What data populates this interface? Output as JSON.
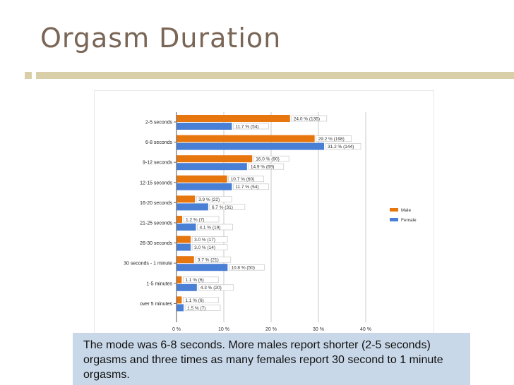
{
  "slide": {
    "title": "Orgasm Duration",
    "caption": "The mode was 6-8 seconds.  More males report shorter (2-5 seconds) orgasms and three times as many females report 30 second to 1 minute orgasms."
  },
  "colors": {
    "title": "#7a6656",
    "accent_bar": "#d8cfa8",
    "male": "#e8760e",
    "female": "#4a7fd6",
    "caption_bg": "#c9d8e8",
    "grid": "#c8c8c8"
  },
  "chart_data": {
    "type": "bar",
    "orientation": "horizontal",
    "categories": [
      "2-5 seconds",
      "6-8 seconds",
      "9-12 seconds",
      "12-15 seconds",
      "16-20 seconds",
      "21-25 seconds",
      "26-30 seconds",
      "30 seconds - 1 minute",
      "1-5 minutes",
      "over 5 minutes"
    ],
    "series": [
      {
        "name": "Male",
        "values": [
          24.0,
          29.2,
          16.0,
          10.7,
          3.9,
          1.2,
          3.0,
          3.7,
          1.1,
          1.1
        ],
        "labels": [
          "24.0 % (135)",
          "29.2 % (198)",
          "16.0 % (90)",
          "10.7 % (60)",
          "3.9 % (22)",
          "1.2 % (7)",
          "3.0 % (17)",
          "3.7 % (21)",
          "1.1 % (6)",
          "1.1 % (6)"
        ]
      },
      {
        "name": "Female",
        "values": [
          11.7,
          31.2,
          14.9,
          11.7,
          6.7,
          4.1,
          3.0,
          10.8,
          4.3,
          1.5
        ],
        "labels": [
          "11.7 % (54)",
          "31.2 % (144)",
          "14.9 % (69)",
          "11.7 % (54)",
          "6.7 % (31)",
          "4.1 % (19)",
          "3.0 % (14)",
          "10.8 % (50)",
          "4.3 % (20)",
          "1.5 % (7)"
        ]
      }
    ],
    "xlim": [
      0,
      40
    ],
    "x_ticks": [
      0,
      10,
      20,
      30,
      40
    ],
    "x_tick_labels": [
      "0 %",
      "10 %",
      "20 %",
      "30 %",
      "40 %"
    ],
    "grid": true,
    "legend_position": "right",
    "title": "",
    "xlabel": "",
    "ylabel": ""
  }
}
